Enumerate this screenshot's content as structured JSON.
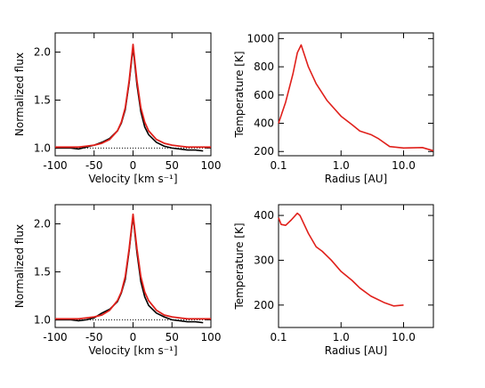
{
  "chart_data": [
    {
      "type": "line",
      "xlabel": "Velocity [km s⁻¹]",
      "ylabel": "Normalized flux",
      "x": [
        -100,
        -90,
        -80,
        -70,
        -60,
        -50,
        -40,
        -30,
        -20,
        -15,
        -10,
        -5,
        0,
        5,
        10,
        15,
        20,
        30,
        40,
        50,
        60,
        70,
        80,
        90,
        100
      ],
      "series": [
        {
          "color": "#000000",
          "values": [
            1.0,
            1.0,
            1.0,
            0.99,
            1.01,
            1.03,
            1.06,
            1.1,
            1.18,
            1.26,
            1.4,
            1.68,
            2.05,
            1.66,
            1.38,
            1.22,
            1.14,
            1.06,
            1.02,
            1.0,
            0.99,
            0.98,
            0.98,
            0.97,
            null
          ]
        },
        {
          "color": "#e0201b",
          "values": [
            1.01,
            1.01,
            1.01,
            1.01,
            1.02,
            1.03,
            1.05,
            1.09,
            1.18,
            1.27,
            1.42,
            1.7,
            2.08,
            1.7,
            1.42,
            1.27,
            1.18,
            1.09,
            1.05,
            1.03,
            1.02,
            1.01,
            1.01,
            1.01,
            1.01
          ]
        }
      ],
      "reference_line": 1.0,
      "xlim": [
        -100,
        100
      ],
      "xticks": [
        -100,
        -50,
        0,
        50,
        100
      ],
      "ylim": [
        0.92,
        2.2
      ],
      "yticks": [
        {
          "value": 1.0,
          "label": "1.0"
        },
        {
          "value": 1.5,
          "label": "1.5"
        },
        {
          "value": 2.0,
          "label": "2.0"
        }
      ]
    },
    {
      "type": "line",
      "xlabel": "Radius [AU]",
      "ylabel": "Temperature [K]",
      "xscale": "log",
      "x": [
        0.1,
        0.13,
        0.17,
        0.2,
        0.23,
        0.3,
        0.4,
        0.6,
        1.0,
        1.5,
        2.0,
        3.0,
        4.0,
        6.0,
        10,
        20,
        30
      ],
      "series": [
        {
          "color": "#e0201b",
          "values": [
            400,
            550,
            750,
            900,
            955,
            800,
            680,
            560,
            450,
            390,
            345,
            320,
            290,
            235,
            225,
            228,
            205
          ]
        }
      ],
      "xlim": [
        0.1,
        30
      ],
      "xticks": [
        0.1,
        {
          "value": 1,
          "label": "1.0"
        },
        {
          "value": 10,
          "label": "10.0"
        }
      ],
      "ylim": [
        170,
        1040
      ],
      "yticks": [
        200,
        400,
        600,
        800,
        1000
      ]
    },
    {
      "type": "line",
      "xlabel": "Velocity [km s⁻¹]",
      "ylabel": "Normalized flux",
      "x": [
        -100,
        -90,
        -80,
        -70,
        -60,
        -50,
        -40,
        -30,
        -20,
        -15,
        -10,
        -5,
        0,
        5,
        10,
        15,
        20,
        30,
        40,
        50,
        60,
        70,
        80,
        90,
        100
      ],
      "series": [
        {
          "color": "#000000",
          "values": [
            1.0,
            1.0,
            1.0,
            0.99,
            1.0,
            1.02,
            1.07,
            1.11,
            1.19,
            1.28,
            1.42,
            1.72,
            2.08,
            1.7,
            1.4,
            1.24,
            1.15,
            1.07,
            1.03,
            1.0,
            0.99,
            0.98,
            0.98,
            0.97,
            null
          ]
        },
        {
          "color": "#e0201b",
          "values": [
            1.01,
            1.01,
            1.01,
            1.01,
            1.02,
            1.03,
            1.05,
            1.1,
            1.2,
            1.29,
            1.45,
            1.74,
            2.1,
            1.74,
            1.45,
            1.29,
            1.2,
            1.1,
            1.05,
            1.03,
            1.02,
            1.01,
            1.01,
            1.01,
            1.01
          ]
        }
      ],
      "reference_line": 1.0,
      "xlim": [
        -100,
        100
      ],
      "xticks": [
        -100,
        -50,
        0,
        50,
        100
      ],
      "ylim": [
        0.92,
        2.2
      ],
      "yticks": [
        {
          "value": 1.0,
          "label": "1.0"
        },
        {
          "value": 1.5,
          "label": "1.5"
        },
        {
          "value": 2.0,
          "label": "2.0"
        }
      ]
    },
    {
      "type": "line",
      "xlabel": "Radius [AU]",
      "ylabel": "Temperature [K]",
      "xscale": "log",
      "x": [
        0.1,
        0.11,
        0.13,
        0.16,
        0.2,
        0.22,
        0.3,
        0.4,
        0.5,
        0.7,
        1.0,
        1.5,
        2.0,
        3.0,
        5.0,
        7.0,
        10
      ],
      "series": [
        {
          "color": "#e0201b",
          "values": [
            395,
            380,
            378,
            390,
            405,
            400,
            360,
            330,
            320,
            300,
            275,
            255,
            238,
            220,
            205,
            198,
            200
          ]
        }
      ],
      "xlim": [
        0.1,
        30
      ],
      "xticks": [
        0.1,
        {
          "value": 1,
          "label": "1.0"
        },
        {
          "value": 10,
          "label": "10.0"
        }
      ],
      "ylim": [
        150,
        424
      ],
      "yticks": [
        200,
        300,
        400
      ]
    }
  ]
}
